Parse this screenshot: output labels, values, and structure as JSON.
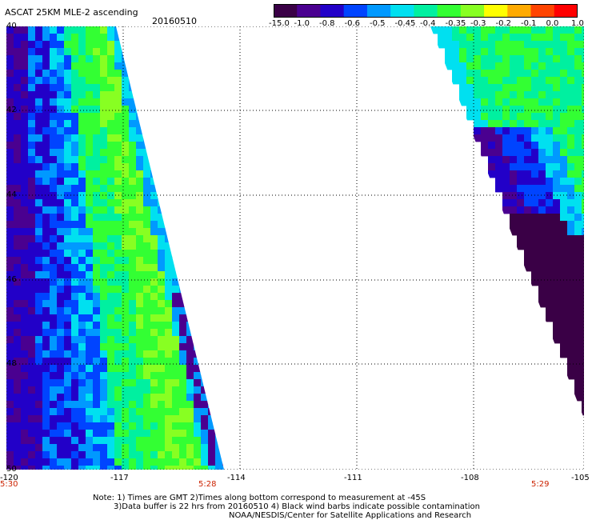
{
  "title": "ASCAT 25KM MLE-2 ascending",
  "date": "20160510",
  "colorbar": {
    "labels": [
      "-15.0",
      "-1.0",
      "-0.8",
      "-0.6",
      "-0.5",
      "-0.45",
      "-0.4",
      "-0.35",
      "-0.3",
      "-0.2",
      "-0.1",
      "0.0",
      "1.0"
    ],
    "colors": [
      "#3a0046",
      "#4a0090",
      "#2200c8",
      "#0044ff",
      "#0099ff",
      "#00e0f0",
      "#00f0a0",
      "#33ff33",
      "#88ff22",
      "#ffff00",
      "#ffaa00",
      "#ff4400",
      "#ff0000"
    ]
  },
  "axes": {
    "lat_labels": [
      "40",
      "42",
      "44",
      "46",
      "48",
      "50"
    ],
    "lon_labels": [
      "-120",
      "-117",
      "-114",
      "-111",
      "-108",
      "-105"
    ]
  },
  "time_labels": [
    {
      "text": "5:30",
      "lon": "-120"
    },
    {
      "text": "5:28",
      "lon": "-115"
    },
    {
      "text": "5:29",
      "lon": "-105.5"
    }
  ],
  "notes": [
    "Note: 1) Times are GMT 2)Times along bottom correspond to measurement at -45S",
    "3)Data buffer is 22 hrs from 20160510 4) Black wind barbs indicate possible contamination",
    "NOAA/NESDIS/Center for Satellite Applications and Research"
  ]
}
